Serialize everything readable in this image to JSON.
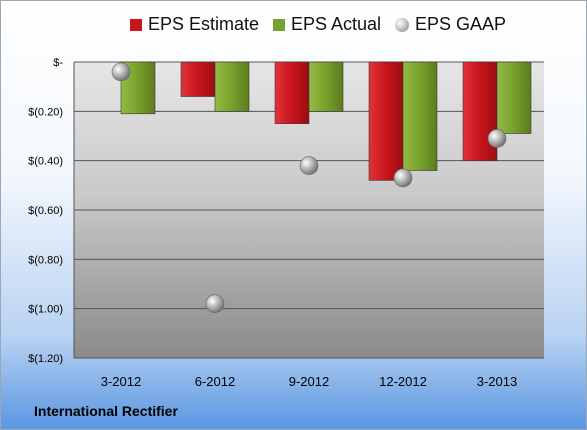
{
  "footer": {
    "company": "International Rectifier"
  },
  "legend": [
    {
      "name": "EPS Estimate",
      "color": "#c8141c",
      "marker": "bar"
    },
    {
      "name": "EPS Actual",
      "color": "#78a02c",
      "marker": "bar"
    },
    {
      "name": "EPS GAAP",
      "color": "#a9a9a9",
      "marker": "sphere"
    }
  ],
  "chart_data": {
    "type": "bar",
    "categories": [
      "3-2012",
      "6-2012",
      "9-2012",
      "12-2012",
      "3-2013"
    ],
    "series": [
      {
        "name": "EPS Estimate",
        "kind": "bar",
        "color": "#c8141c",
        "values": [
          null,
          -0.14,
          -0.25,
          -0.48,
          -0.4
        ]
      },
      {
        "name": "EPS Actual",
        "kind": "bar",
        "color": "#78a02c",
        "values": [
          -0.21,
          -0.2,
          -0.2,
          -0.44,
          -0.29
        ]
      },
      {
        "name": "EPS GAAP",
        "kind": "marker",
        "color": "#a9a9a9",
        "values": [
          -0.04,
          -0.98,
          -0.42,
          -0.47,
          -0.31
        ]
      }
    ],
    "yticks": [
      0,
      -0.2,
      -0.4,
      -0.6,
      -0.8,
      -1.0,
      -1.2
    ],
    "ytick_labels": [
      "$-",
      "$(0.20)",
      "$(0.40)",
      "$(0.60)",
      "$(0.80)",
      "$(1.00)",
      "$(1.20)"
    ],
    "ylim": [
      -1.2,
      0
    ],
    "grid": true,
    "legend_position": "top"
  }
}
